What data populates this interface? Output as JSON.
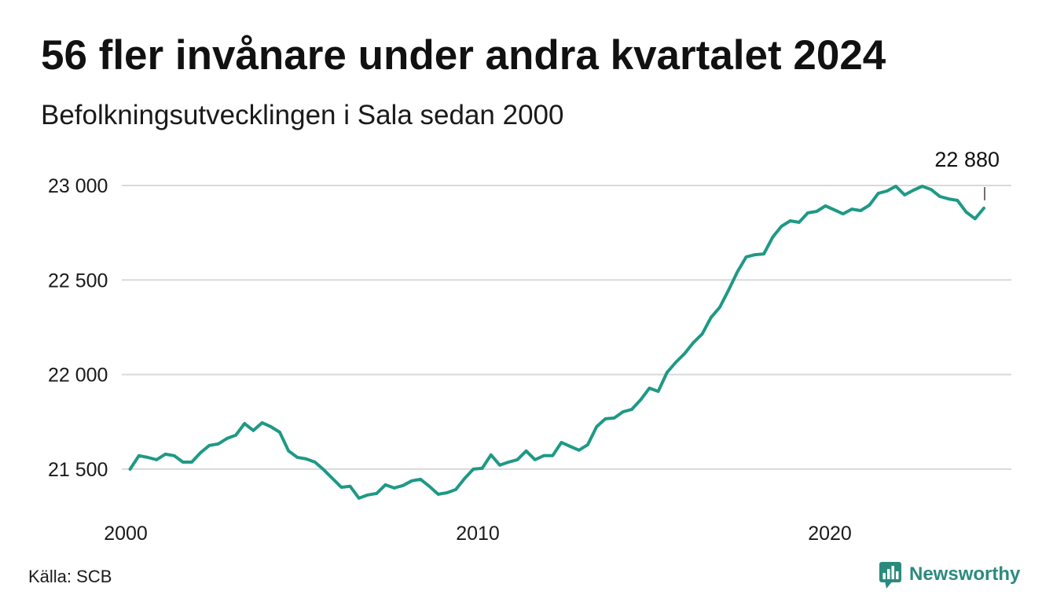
{
  "chart_data": {
    "type": "line",
    "title": "56 fler invånare under andra kvartalet 2024",
    "subtitle": "Befolkningsutvecklingen i Sala sedan 2000",
    "x": [
      "2000-Q1",
      "2000-Q2",
      "2000-Q3",
      "2000-Q4",
      "2001-Q1",
      "2001-Q2",
      "2001-Q3",
      "2001-Q4",
      "2002-Q1",
      "2002-Q2",
      "2002-Q3",
      "2002-Q4",
      "2003-Q1",
      "2003-Q2",
      "2003-Q3",
      "2003-Q4",
      "2004-Q1",
      "2004-Q2",
      "2004-Q3",
      "2004-Q4",
      "2005-Q1",
      "2005-Q2",
      "2005-Q3",
      "2005-Q4",
      "2006-Q1",
      "2006-Q2",
      "2006-Q3",
      "2006-Q4",
      "2007-Q1",
      "2007-Q2",
      "2007-Q3",
      "2007-Q4",
      "2008-Q1",
      "2008-Q2",
      "2008-Q3",
      "2008-Q4",
      "2009-Q1",
      "2009-Q2",
      "2009-Q3",
      "2009-Q4",
      "2010-Q1",
      "2010-Q2",
      "2010-Q3",
      "2010-Q4",
      "2011-Q1",
      "2011-Q2",
      "2011-Q3",
      "2011-Q4",
      "2012-Q1",
      "2012-Q2",
      "2012-Q3",
      "2012-Q4",
      "2013-Q1",
      "2013-Q2",
      "2013-Q3",
      "2013-Q4",
      "2014-Q1",
      "2014-Q2",
      "2014-Q3",
      "2014-Q4",
      "2015-Q1",
      "2015-Q2",
      "2015-Q3",
      "2015-Q4",
      "2016-Q1",
      "2016-Q2",
      "2016-Q3",
      "2016-Q4",
      "2017-Q1",
      "2017-Q2",
      "2017-Q3",
      "2017-Q4",
      "2018-Q1",
      "2018-Q2",
      "2018-Q3",
      "2018-Q4",
      "2019-Q1",
      "2019-Q2",
      "2019-Q3",
      "2019-Q4",
      "2020-Q1",
      "2020-Q2",
      "2020-Q3",
      "2020-Q4",
      "2021-Q1",
      "2021-Q2",
      "2021-Q3",
      "2021-Q4",
      "2022-Q1",
      "2022-Q2",
      "2022-Q3",
      "2022-Q4",
      "2023-Q1",
      "2023-Q2",
      "2023-Q3",
      "2023-Q4",
      "2024-Q1",
      "2024-Q2"
    ],
    "series": [
      {
        "values": [
          21500,
          21571,
          21562,
          21550,
          21579,
          21571,
          21537,
          21537,
          21587,
          21625,
          21633,
          21662,
          21679,
          21741,
          21704,
          21745,
          21724,
          21695,
          21596,
          21562,
          21554,
          21537,
          21496,
          21450,
          21404,
          21409,
          21346,
          21363,
          21371,
          21417,
          21400,
          21413,
          21438,
          21446,
          21409,
          21367,
          21375,
          21392,
          21450,
          21500,
          21504,
          21575,
          21521,
          21537,
          21550,
          21596,
          21550,
          21571,
          21571,
          21641,
          21620,
          21600,
          21629,
          21724,
          21766,
          21770,
          21803,
          21816,
          21866,
          21928,
          21911,
          22011,
          22065,
          22111,
          22169,
          22215,
          22302,
          22356,
          22447,
          22543,
          22622,
          22634,
          22638,
          22726,
          22784,
          22813,
          22805,
          22855,
          22863,
          22892,
          22871,
          22850,
          22875,
          22867,
          22896,
          22958,
          22971,
          22996,
          22950,
          22975,
          22996,
          22979,
          22942,
          22929,
          22921,
          22859,
          22824,
          22880
        ]
      }
    ],
    "xlim": [
      2000,
      2025
    ],
    "ylim": [
      21300,
      23000
    ],
    "xticks": [
      2000,
      2010,
      2020
    ],
    "xtick_labels": [
      "2000",
      "2010",
      "2020"
    ],
    "yticks": [
      21500,
      22000,
      22500,
      23000
    ],
    "ytick_labels": [
      "21 500",
      "22 000",
      "22 500",
      "23 000"
    ],
    "grid": {
      "horizontal": true,
      "vertical": false
    },
    "legend": "none",
    "annotations": [
      {
        "x": "2024-Q2",
        "label": "22 880"
      }
    ]
  },
  "source": "Källa: SCB",
  "logo": {
    "text": "Newsworthy",
    "icon": "bar-chart-speech-bubble-icon"
  },
  "colors": {
    "line": "#1f9985",
    "gridline": "#d9d9d9",
    "text": "#111111",
    "brand": "#2b8a7e"
  }
}
